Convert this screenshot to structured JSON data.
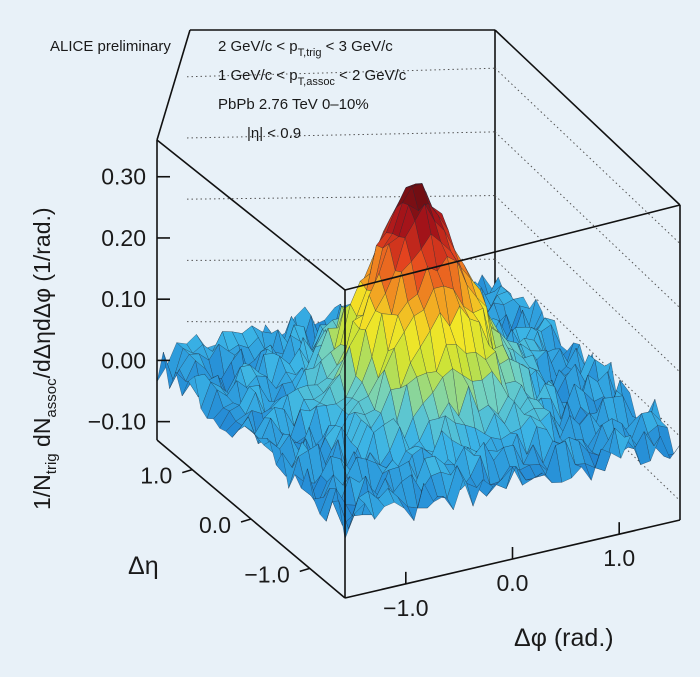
{
  "chart_data": {
    "type": "surface3d",
    "figure_label": "ALICE preliminary",
    "annotations": [
      "2 GeV/c < p_T,trig < 3 GeV/c",
      "1 GeV/c < p_T,assoc < 2 GeV/c",
      "PbPb 2.76 TeV 0–10%",
      "|η| < 0.9"
    ],
    "xlabel": "Δφ (rad.)",
    "ylabel": "Δη",
    "zlabel": "1/N_trig dN_assoc/dΔηdΔφ (1/rad.)",
    "x_ticks": [
      "−1.0",
      "0.0",
      "1.0"
    ],
    "y_ticks": [
      "1.0",
      "0.0",
      "−1.0"
    ],
    "z_ticks": [
      "0.30",
      "0.20",
      "0.10",
      "0.00",
      "−0.10"
    ],
    "xlim": [
      -1.57,
      1.57
    ],
    "ylim": [
      -1.6,
      1.6
    ],
    "zlim": [
      -0.13,
      0.36
    ],
    "surface": {
      "baseline": 0.0,
      "noise_amplitude": 0.035,
      "near_side_peak": {
        "phi": 0.0,
        "eta": 0.0,
        "height": 0.31,
        "sigma_phi": 0.42,
        "sigma_eta": 0.5
      },
      "secondary_peak": {
        "phi": 0.12,
        "eta": 0.25,
        "height": 0.27
      }
    },
    "colormap": [
      "#0d4fa8",
      "#1e7fd0",
      "#3ab3e6",
      "#6fd0c4",
      "#c7e23a",
      "#f3e626",
      "#f29a22",
      "#e5451f",
      "#a8141a",
      "#5e0c10"
    ]
  },
  "texts": {
    "figure_label": "ALICE preliminary",
    "cut1_a": "2 GeV/c < p",
    "cut1_sub": "T,trig",
    "cut1_b": " < 3 GeV/c",
    "cut2_a": "1 GeV/c < p",
    "cut2_sub": "T,assoc",
    "cut2_b": " < 2 GeV/c",
    "system": "PbPb 2.76 TeV 0–10%",
    "eta_cut": "|η| < 0.9",
    "xlabel": "Δφ (rad.)",
    "ylabel": "Δη",
    "z_a": "1/N",
    "z_sub1": "trig",
    "z_b": " dN",
    "z_sub2": "assoc",
    "z_c": "/dΔηdΔφ (1/rad.)"
  }
}
